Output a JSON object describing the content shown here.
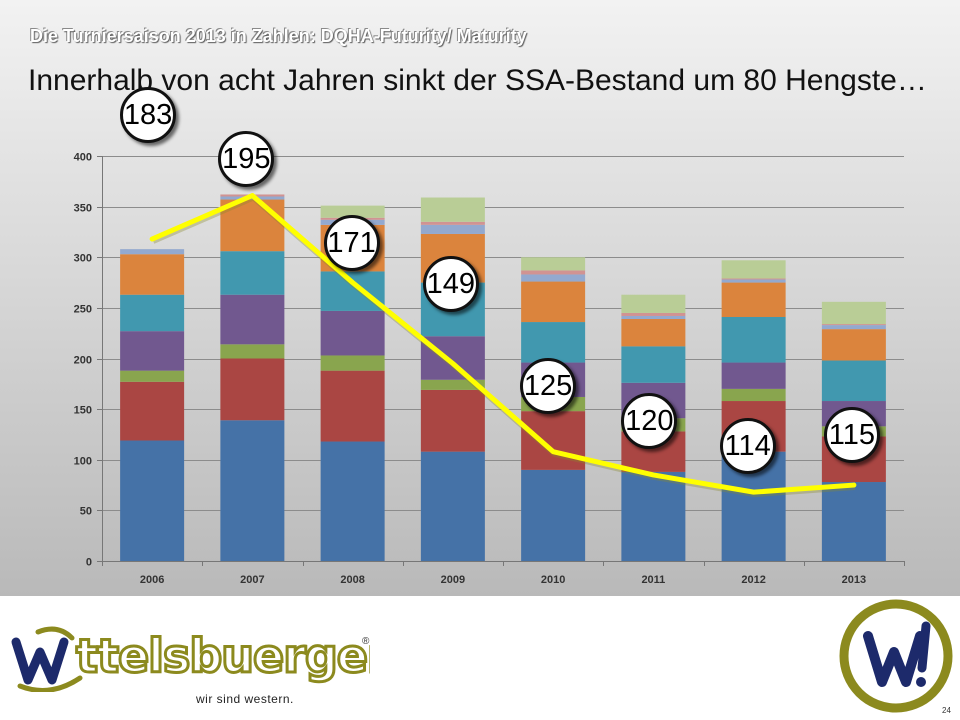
{
  "slide": {
    "supertitle": "Die Turniersaison 2013 in Zahlen: DQHA-Futurity/ Maturity",
    "title": "Innerhalb von acht Jahren sinkt der SSA-Bestand um 80 Hengste…",
    "page_number": "24"
  },
  "brand": {
    "logo_text": "ttelsbuerger",
    "registered_mark": "®",
    "tagline": "wir sind western.",
    "emblem_letters": "W!",
    "logo_icon": "w-swirl-logo",
    "colors": {
      "navy": "#1d2a6b",
      "olive": "#8c8a1e"
    }
  },
  "chart_data": {
    "type": "bar",
    "stacked": true,
    "categories": [
      "2006",
      "2007",
      "2008",
      "2009",
      "2010",
      "2011",
      "2012",
      "2013"
    ],
    "ylim": [
      0,
      400
    ],
    "yticks": [
      0,
      50,
      100,
      150,
      200,
      250,
      300,
      350,
      400
    ],
    "grid": true,
    "series": [
      {
        "color": "#4572a7",
        "values": [
          119,
          139,
          118,
          108,
          90,
          88,
          108,
          78
        ]
      },
      {
        "color": "#aa4643",
        "values": [
          58,
          61,
          70,
          61,
          58,
          40,
          50,
          45
        ]
      },
      {
        "color": "#89a54e",
        "values": [
          11,
          14,
          15,
          10,
          14,
          13,
          12,
          10
        ]
      },
      {
        "color": "#71588f",
        "values": [
          39,
          49,
          44,
          43,
          34,
          35,
          26,
          25
        ]
      },
      {
        "color": "#4198af",
        "values": [
          36,
          43,
          39,
          53,
          40,
          36,
          45,
          40
        ]
      },
      {
        "color": "#db843d",
        "values": [
          40,
          51,
          46,
          48,
          40,
          27,
          34,
          31
        ]
      },
      {
        "color": "#93a9cf",
        "values": [
          5,
          3,
          5,
          9,
          7,
          3,
          3,
          4
        ]
      },
      {
        "color": "#d19392",
        "values": [
          0,
          2,
          2,
          3,
          4,
          3,
          1,
          1
        ]
      },
      {
        "color": "#b9cd96",
        "values": [
          0,
          0,
          12,
          24,
          13,
          18,
          18,
          22
        ]
      }
    ],
    "line": {
      "color": "#ffff00",
      "values": [
        318,
        361,
        275,
        195,
        108,
        85,
        68,
        75
      ],
      "callouts": [
        "183",
        "195",
        "171",
        "149",
        "125",
        "120",
        "114",
        "115"
      ],
      "callout_offsets_placeholder": null
    }
  }
}
